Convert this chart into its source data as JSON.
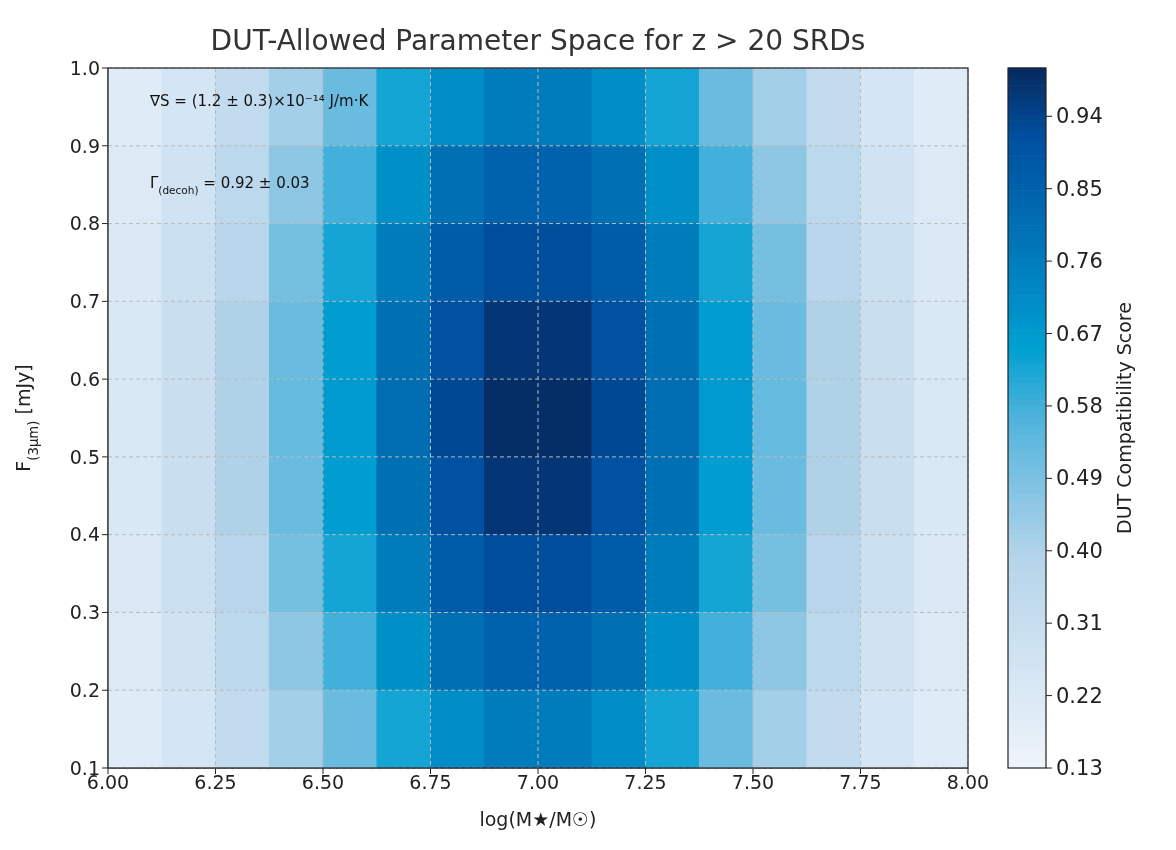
{
  "chart_data": {
    "type": "heatmap",
    "title": "DUT-Allowed Parameter Space for z > 20 SRDs",
    "xlabel": "log(M★/M☉)",
    "ylabel": "F$_{(3μm)}$ [mJy]",
    "clabel": "DUT Compatibility Score",
    "annotations": [
      "∇S = (1.2 ± 0.3)×10⁻¹⁴ J/m·K",
      "Γ$_{(decoh)}$ = 0.92 ± 0.03"
    ],
    "xlim": [
      6,
      8
    ],
    "ylim": [
      0.1,
      1.0
    ],
    "xticks": [
      {
        "value": 6,
        "label": "6.00"
      },
      6.25,
      {
        "value": 6.5,
        "label": "6.50"
      },
      6.75,
      {
        "value": 7,
        "label": "7.00"
      },
      7.25,
      {
        "value": 7.5,
        "label": "7.50"
      },
      7.75,
      {
        "value": 8,
        "label": "8.00"
      }
    ],
    "yticks": [
      0.1,
      0.2,
      0.3,
      0.4,
      0.5,
      0.6,
      0.7,
      0.8,
      0.9,
      {
        "value": 1,
        "label": "1.0"
      }
    ],
    "grid": true,
    "clim": [
      0.13,
      1.0
    ],
    "cticks": [
      0.13,
      0.22,
      0.31,
      {
        "value": 0.4,
        "label": "0.40"
      },
      0.49,
      0.58,
      0.67,
      0.76,
      0.85,
      0.94
    ],
    "cells": [
      [
        0.2,
        0.25,
        0.33,
        0.42,
        0.52,
        0.63,
        0.71,
        0.76,
        0.76,
        0.71,
        0.63,
        0.52,
        0.42,
        0.33,
        0.25,
        0.2
      ],
      [
        0.21,
        0.27,
        0.36,
        0.46,
        0.58,
        0.7,
        0.8,
        0.85,
        0.85,
        0.8,
        0.7,
        0.58,
        0.46,
        0.36,
        0.27,
        0.21
      ],
      [
        0.22,
        0.29,
        0.38,
        0.5,
        0.63,
        0.76,
        0.87,
        0.92,
        0.92,
        0.87,
        0.76,
        0.63,
        0.5,
        0.38,
        0.29,
        0.22
      ],
      [
        0.23,
        0.3,
        0.4,
        0.52,
        0.66,
        0.8,
        0.91,
        0.97,
        0.97,
        0.91,
        0.8,
        0.66,
        0.52,
        0.4,
        0.3,
        0.23
      ],
      [
        0.23,
        0.3,
        0.4,
        0.53,
        0.67,
        0.81,
        0.93,
        0.99,
        0.99,
        0.93,
        0.81,
        0.67,
        0.53,
        0.4,
        0.3,
        0.23
      ],
      [
        0.23,
        0.3,
        0.4,
        0.52,
        0.66,
        0.8,
        0.91,
        0.97,
        0.97,
        0.91,
        0.8,
        0.66,
        0.52,
        0.4,
        0.3,
        0.23
      ],
      [
        0.22,
        0.29,
        0.38,
        0.5,
        0.63,
        0.76,
        0.87,
        0.92,
        0.92,
        0.87,
        0.76,
        0.63,
        0.5,
        0.38,
        0.29,
        0.22
      ],
      [
        0.21,
        0.27,
        0.36,
        0.46,
        0.58,
        0.7,
        0.8,
        0.85,
        0.85,
        0.8,
        0.7,
        0.58,
        0.46,
        0.36,
        0.27,
        0.21
      ],
      [
        0.2,
        0.25,
        0.33,
        0.42,
        0.52,
        0.63,
        0.71,
        0.76,
        0.76,
        0.71,
        0.63,
        0.52,
        0.42,
        0.33,
        0.25,
        0.2
      ]
    ]
  }
}
